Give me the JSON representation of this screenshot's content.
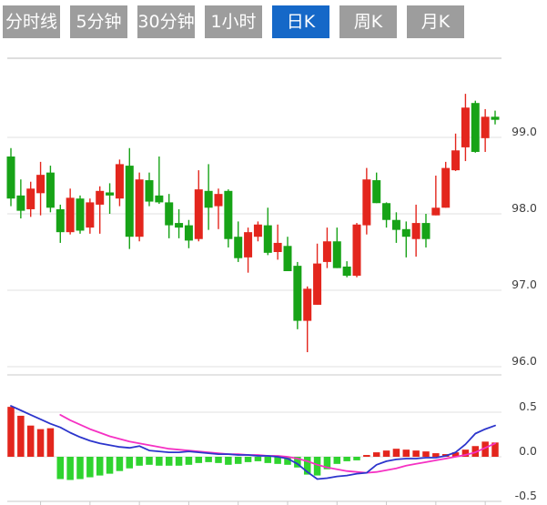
{
  "tab_bar": {
    "items": [
      {
        "label": "分时线",
        "active": false
      },
      {
        "label": "5分钟",
        "active": false
      },
      {
        "label": "30分钟",
        "active": false
      },
      {
        "label": "1小时",
        "active": false
      },
      {
        "label": "日K",
        "active": true
      },
      {
        "label": "周K",
        "active": false
      },
      {
        "label": "月K",
        "active": false
      }
    ]
  },
  "colors": {
    "tab_inactive_bg": "#9d9d9d",
    "tab_active_bg": "#1568c8",
    "tab_text": "#ffffff",
    "candle_up": "#e3261d",
    "candle_down": "#17a317",
    "hist_up": "#e3261d",
    "hist_down": "#2fd32f",
    "dif_line": "#2c35cc",
    "dea_line": "#f531c3",
    "grid_line": "#e2e2e2",
    "axis_line": "#c9c9c9",
    "axis_label": "#3f3f3f",
    "background": "#ffffff"
  },
  "chart_data": [
    {
      "type": "candlestick",
      "panel": "price",
      "axis_side": "right",
      "grid": true,
      "legend": "none",
      "y_ticks": [
        "99.0",
        "98.0",
        "97.0",
        "96.0"
      ],
      "y_tick_values": [
        99.0,
        98.0,
        97.0,
        96.0
      ],
      "ylim": [
        95.9,
        100.05
      ],
      "up_means": "close >= open (red, Chinese convention)",
      "candles_format": [
        "open",
        "high",
        "low",
        "close"
      ],
      "candles": [
        [
          98.75,
          98.86,
          98.1,
          98.2
        ],
        [
          98.24,
          98.45,
          97.94,
          98.04
        ],
        [
          98.06,
          98.42,
          97.96,
          98.33
        ],
        [
          98.27,
          98.68,
          97.98,
          98.51
        ],
        [
          98.54,
          98.63,
          98.02,
          98.08
        ],
        [
          98.06,
          98.12,
          97.62,
          97.76
        ],
        [
          97.76,
          98.33,
          97.73,
          98.21
        ],
        [
          98.2,
          98.24,
          97.74,
          97.78
        ],
        [
          97.82,
          98.2,
          97.74,
          98.15
        ],
        [
          98.12,
          98.36,
          97.74,
          98.3
        ],
        [
          98.28,
          98.4,
          98.0,
          98.24
        ],
        [
          98.2,
          98.71,
          98.1,
          98.65
        ],
        [
          98.63,
          98.86,
          97.54,
          97.7
        ],
        [
          97.7,
          98.54,
          97.64,
          98.45
        ],
        [
          98.44,
          98.54,
          98.1,
          98.16
        ],
        [
          98.24,
          98.75,
          98.13,
          98.15
        ],
        [
          98.15,
          98.26,
          97.68,
          97.85
        ],
        [
          97.88,
          98.06,
          97.68,
          97.82
        ],
        [
          97.85,
          97.92,
          97.55,
          97.65
        ],
        [
          97.67,
          98.57,
          97.64,
          98.32
        ],
        [
          98.3,
          98.65,
          97.79,
          98.08
        ],
        [
          98.1,
          98.33,
          97.8,
          98.26
        ],
        [
          98.3,
          98.32,
          97.56,
          97.67
        ],
        [
          97.7,
          97.9,
          97.37,
          97.42
        ],
        [
          97.43,
          97.82,
          97.23,
          97.76
        ],
        [
          97.7,
          97.9,
          97.64,
          97.86
        ],
        [
          97.85,
          98.08,
          97.46,
          97.49
        ],
        [
          97.5,
          97.86,
          97.4,
          97.62
        ],
        [
          97.58,
          97.7,
          97.25,
          97.25
        ],
        [
          97.32,
          97.37,
          96.49,
          96.6
        ],
        [
          96.6,
          97.05,
          96.19,
          97.02
        ],
        [
          96.81,
          97.61,
          96.81,
          97.35
        ],
        [
          97.37,
          97.82,
          97.29,
          97.64
        ],
        [
          97.64,
          97.82,
          97.29,
          97.29
        ],
        [
          97.31,
          97.38,
          97.17,
          97.19
        ],
        [
          97.19,
          97.88,
          97.17,
          97.86
        ],
        [
          97.85,
          98.6,
          97.73,
          98.45
        ],
        [
          98.44,
          98.54,
          98.14,
          98.14
        ],
        [
          98.14,
          98.15,
          97.82,
          97.92
        ],
        [
          97.92,
          98.02,
          97.62,
          97.79
        ],
        [
          97.8,
          97.9,
          97.43,
          97.7
        ],
        [
          97.67,
          98.12,
          97.44,
          97.88
        ],
        [
          97.88,
          98.0,
          97.56,
          97.67
        ],
        [
          97.98,
          98.5,
          97.98,
          98.08
        ],
        [
          98.08,
          98.68,
          98.08,
          98.6
        ],
        [
          98.57,
          99.05,
          98.56,
          98.83
        ],
        [
          98.87,
          99.57,
          98.69,
          99.39
        ],
        [
          99.45,
          99.48,
          98.8,
          98.81
        ],
        [
          98.99,
          99.37,
          98.81,
          99.27
        ],
        [
          99.27,
          99.35,
          99.17,
          99.23
        ]
      ]
    },
    {
      "type": "bar",
      "panel": "macd",
      "axis_side": "right",
      "grid": true,
      "y_ticks": [
        "0.5",
        "0.0",
        "-0.5"
      ],
      "y_tick_values": [
        0.5,
        0.0,
        -0.5
      ],
      "ylim": [
        -0.55,
        0.55
      ],
      "histogram": [
        0.56,
        0.46,
        0.35,
        0.31,
        0.32,
        -0.25,
        -0.26,
        -0.25,
        -0.23,
        -0.21,
        -0.19,
        -0.16,
        -0.13,
        -0.1,
        -0.09,
        -0.1,
        -0.1,
        -0.1,
        -0.09,
        -0.07,
        -0.06,
        -0.07,
        -0.09,
        -0.08,
        -0.06,
        -0.05,
        -0.07,
        -0.08,
        -0.09,
        -0.12,
        -0.2,
        -0.21,
        -0.14,
        -0.08,
        -0.05,
        -0.04,
        0.02,
        0.05,
        0.07,
        0.09,
        0.08,
        0.07,
        0.06,
        0.04,
        0.03,
        0.05,
        0.08,
        0.12,
        0.17,
        0.16
      ],
      "series": [
        {
          "name": "DIF",
          "color": "#2c35cc",
          "values": [
            0.57,
            0.52,
            0.47,
            0.42,
            0.37,
            0.33,
            0.27,
            0.22,
            0.18,
            0.15,
            0.13,
            0.11,
            0.1,
            0.12,
            0.07,
            0.06,
            0.05,
            0.05,
            0.06,
            0.05,
            0.04,
            0.03,
            0.03,
            0.02,
            0.02,
            0.01,
            0.01,
            0.0,
            -0.02,
            -0.08,
            -0.17,
            -0.25,
            -0.24,
            -0.22,
            -0.21,
            -0.19,
            -0.18,
            -0.09,
            -0.05,
            -0.03,
            -0.02,
            -0.02,
            -0.01,
            -0.01,
            0.01,
            0.05,
            0.14,
            0.26,
            0.31,
            0.35
          ]
        },
        {
          "name": "DEA",
          "color": "#f531c3",
          "values": [
            null,
            null,
            null,
            null,
            null,
            0.47,
            0.41,
            0.36,
            0.31,
            0.27,
            0.23,
            0.2,
            0.17,
            0.15,
            0.13,
            0.11,
            0.09,
            0.08,
            0.07,
            0.06,
            0.05,
            0.04,
            0.03,
            0.03,
            0.02,
            0.02,
            0.01,
            0.01,
            0.0,
            -0.02,
            -0.05,
            -0.09,
            -0.12,
            -0.14,
            -0.16,
            -0.17,
            -0.18,
            -0.17,
            -0.15,
            -0.13,
            -0.1,
            -0.08,
            -0.06,
            -0.04,
            -0.02,
            0.0,
            0.02,
            0.05,
            0.1,
            0.15
          ]
        }
      ]
    }
  ]
}
